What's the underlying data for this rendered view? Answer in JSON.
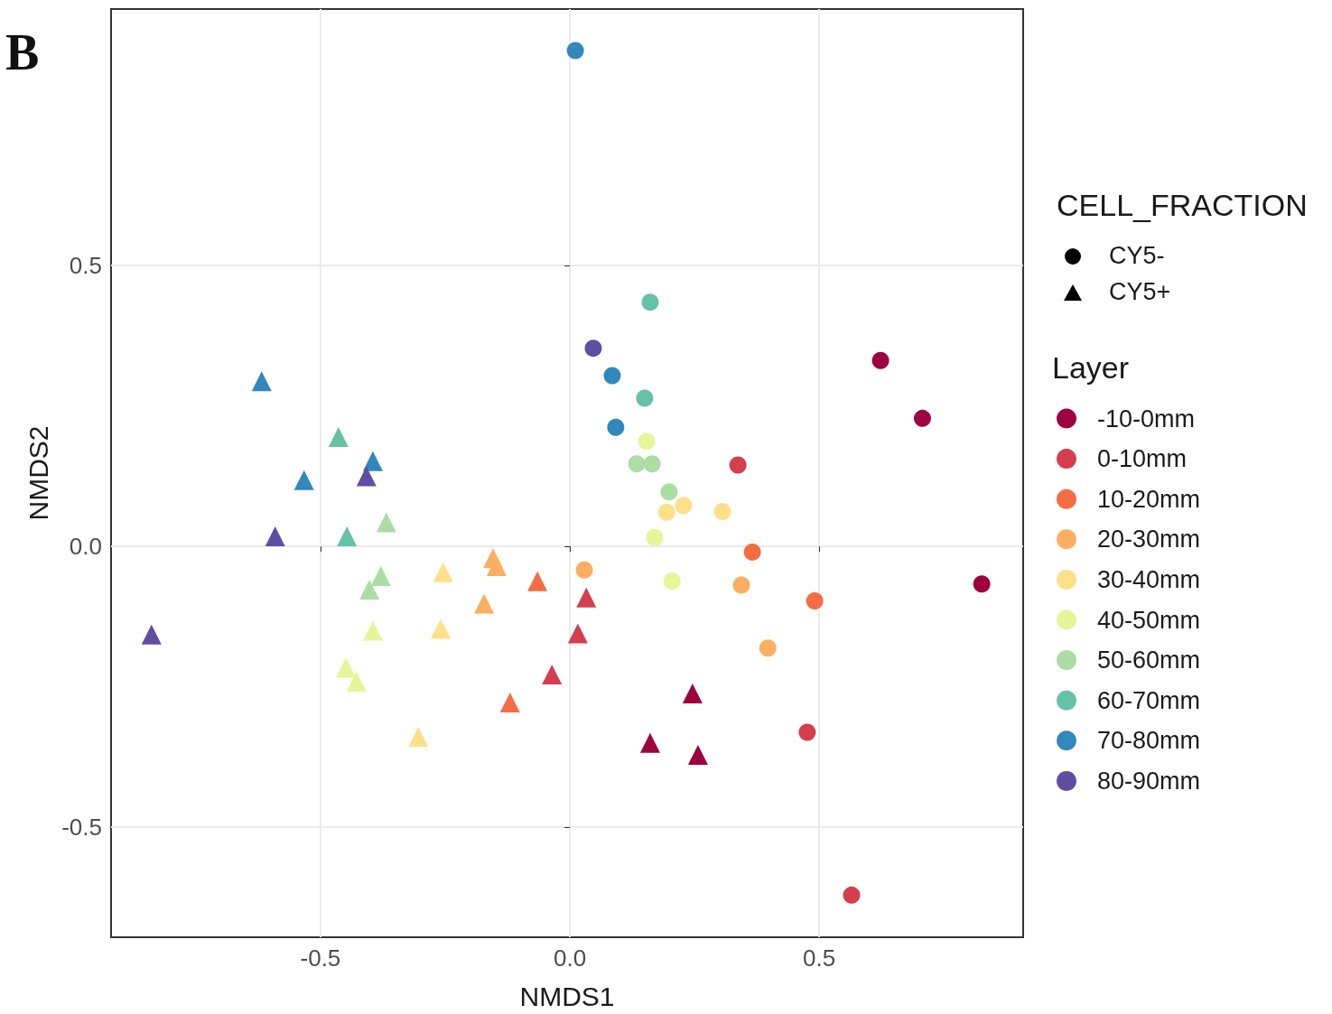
{
  "chart_data": {
    "type": "scatter",
    "xlabel": "NMDS1",
    "ylabel": "NMDS2",
    "legend_title": "Layer",
    "legend": "right",
    "grid": true,
    "annotations": [
      "B",
      "CELL_FRACTION",
      "CY5-",
      "CY5+"
    ],
    "xlim": [
      -0.92,
      0.909
    ],
    "xticks": [
      -0.5,
      {
        "value": 0,
        "label": "0.0"
      },
      0.5
    ],
    "ylim": [
      -0.696,
      0.957
    ],
    "yticks": [
      -0.5,
      {
        "value": 0,
        "label": "0.0"
      },
      0.5
    ],
    "series": [
      {
        "name": "-10-0mm",
        "color": "#9e0142",
        "marker": "circle",
        "x": [
          0.623,
          0.707,
          0.826
        ],
        "values": [
          0.331,
          0.228,
          -0.067
        ]
      },
      {
        "name": "0-10mm",
        "color": "#d53e4f",
        "marker": "circle",
        "x": [
          0.337,
          0.476,
          0.565
        ],
        "values": [
          0.145,
          -0.331,
          -0.621
        ]
      },
      {
        "name": "10-20mm",
        "color": "#f46d43",
        "marker": "circle",
        "x": [
          0.366,
          0.491
        ],
        "values": [
          -0.01,
          -0.097
        ]
      },
      {
        "name": "20-30mm",
        "color": "#fdae61",
        "marker": "circle",
        "x": [
          0.029,
          0.344,
          0.397
        ],
        "values": [
          -0.042,
          -0.069,
          -0.181
        ]
      },
      {
        "name": "30-40mm",
        "color": "#fee08b",
        "marker": "circle",
        "x": [
          0.194,
          0.228,
          0.306
        ],
        "values": [
          0.061,
          0.073,
          0.062
        ]
      },
      {
        "name": "40-50mm",
        "color": "#e6f598",
        "marker": "circle",
        "x": [
          0.154,
          0.17,
          0.205
        ],
        "values": [
          0.187,
          0.016,
          -0.062
        ]
      },
      {
        "name": "50-60mm",
        "color": "#abdda4",
        "marker": "circle",
        "x": [
          0.134,
          0.165,
          0.199
        ],
        "values": [
          0.147,
          0.147,
          0.097
        ]
      },
      {
        "name": "60-70mm",
        "color": "#66c2a5",
        "marker": "circle",
        "x": [
          0.161,
          0.15
        ],
        "values": [
          0.435,
          0.264
        ]
      },
      {
        "name": "70-80mm",
        "color": "#3288bd",
        "marker": "circle",
        "x": [
          0.011,
          0.085,
          0.092
        ],
        "values": [
          0.883,
          0.304,
          0.212
        ]
      },
      {
        "name": "80-90mm",
        "color": "#5e4fa2",
        "marker": "circle",
        "x": [
          0.047
        ],
        "values": [
          0.353
        ]
      },
      {
        "color": "#9e0142",
        "marker": "triangle",
        "x": [
          0.246,
          0.161,
          0.257
        ],
        "values": [
          -0.262,
          -0.35,
          -0.371
        ]
      },
      {
        "color": "#d53e4f",
        "marker": "triangle",
        "x": [
          0.016,
          -0.036,
          0.033
        ],
        "values": [
          -0.155,
          -0.228,
          -0.091
        ]
      },
      {
        "color": "#f46d43",
        "marker": "triangle",
        "x": [
          -0.065,
          -0.12
        ],
        "values": [
          -0.062,
          -0.278
        ]
      },
      {
        "color": "#fdae61",
        "marker": "triangle",
        "x": [
          -0.154,
          -0.147,
          -0.172
        ],
        "values": [
          -0.021,
          -0.035,
          -0.102
        ]
      },
      {
        "color": "#fee08b",
        "marker": "triangle",
        "x": [
          -0.254,
          -0.259,
          -0.304
        ],
        "values": [
          -0.046,
          -0.147,
          -0.339
        ]
      },
      {
        "color": "#e6f598",
        "marker": "triangle",
        "x": [
          -0.395,
          -0.449,
          -0.428
        ],
        "values": [
          -0.15,
          -0.216,
          -0.241
        ]
      },
      {
        "color": "#abdda4",
        "marker": "triangle",
        "x": [
          -0.368,
          -0.379,
          -0.402
        ],
        "values": [
          0.043,
          -0.053,
          -0.077
        ]
      },
      {
        "color": "#66c2a5",
        "marker": "triangle",
        "x": [
          -0.464,
          -0.447
        ],
        "values": [
          0.195,
          0.018
        ]
      },
      {
        "color": "#3288bd",
        "marker": "triangle",
        "x": [
          -0.618,
          -0.533,
          -0.395
        ],
        "values": [
          0.294,
          0.118,
          0.152
        ]
      },
      {
        "color": "#5e4fa2",
        "marker": "triangle",
        "x": [
          -0.408,
          -0.591,
          -0.839
        ],
        "values": [
          0.125,
          0.018,
          -0.157
        ]
      }
    ]
  }
}
